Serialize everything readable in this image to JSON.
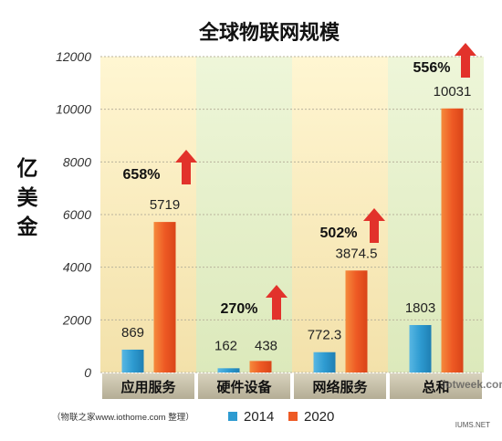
{
  "chart_data": {
    "type": "bar",
    "title": "全球物联网规模",
    "ylabel": "亿美金",
    "xlabel": "",
    "ylim": [
      0,
      12000
    ],
    "yticks": [
      0,
      2000,
      4000,
      6000,
      8000,
      10000,
      12000
    ],
    "grid": true,
    "legend_position": "bottom",
    "categories": [
      "应用服务",
      "硬件设备",
      "网络服务",
      "总和"
    ],
    "series": [
      {
        "name": "2014",
        "values": [
          869,
          162,
          772.3,
          1803
        ],
        "labels": [
          "869",
          "162",
          "772.3",
          "1803"
        ],
        "color": "#2e9bd1"
      },
      {
        "name": "2020",
        "values": [
          5719,
          438,
          3874.5,
          10031
        ],
        "labels": [
          "5719",
          "438",
          "3874.5",
          "10031"
        ],
        "color": "#ee5a24"
      }
    ],
    "growth": [
      "658%",
      "270%",
      "502%",
      "556%"
    ],
    "colors": {
      "band_a": "#f6e8bd",
      "band_b": "#e4efc8",
      "arrow": "#e2322b",
      "category_bar": "#c6c0ab"
    }
  },
  "footer": {
    "source": "（物联之家www.iothome.com 整理）",
    "watermark": "iotweek.com",
    "site_mark": "IUMS.NET"
  }
}
